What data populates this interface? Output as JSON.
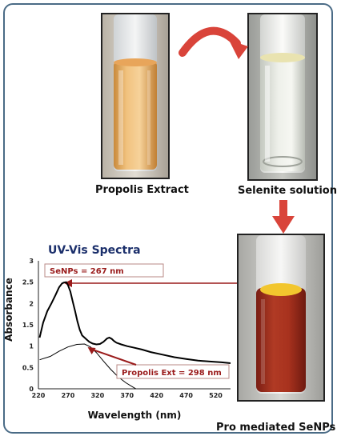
{
  "captions": {
    "propolis": "Propolis Extract",
    "selenite": "Selenite solution",
    "product": "Pro mediated SeNPs"
  },
  "chart_data": {
    "type": "line",
    "title": "UV-Vis Spectra",
    "xlabel": "Wavelength (nm)",
    "ylabel": "Absorbance",
    "xlim": [
      220,
      545
    ],
    "ylim": [
      0,
      3
    ],
    "xticks": [
      220,
      270,
      320,
      370,
      420,
      470,
      520
    ],
    "yticks": [
      0,
      0.5,
      1,
      1.5,
      2,
      2.5,
      3
    ],
    "series": [
      {
        "color": "#000000",
        "x": [
          222,
          228,
          235,
          242,
          249,
          255,
          260,
          263,
          267,
          270,
          274,
          278,
          282,
          286,
          290,
          294,
          298,
          302,
          306,
          312,
          318,
          324,
          330,
          336,
          340,
          344,
          348,
          352,
          360,
          370,
          380,
          395,
          410,
          430,
          450,
          470,
          490,
          510,
          530,
          545
        ],
        "y": [
          1.2,
          1.55,
          1.82,
          2.0,
          2.2,
          2.38,
          2.47,
          2.49,
          2.5,
          2.43,
          2.28,
          2.05,
          1.82,
          1.58,
          1.38,
          1.25,
          1.2,
          1.15,
          1.1,
          1.06,
          1.04,
          1.05,
          1.1,
          1.18,
          1.2,
          1.17,
          1.12,
          1.08,
          1.04,
          1.0,
          0.97,
          0.92,
          0.86,
          0.8,
          0.74,
          0.7,
          0.66,
          0.64,
          0.62,
          0.6
        ]
      },
      {
        "color": "#000000",
        "x": [
          222,
          240,
          255,
          270,
          285,
          298,
          308,
          318,
          330,
          342,
          355,
          368,
          380,
          385
        ],
        "y": [
          0.68,
          0.76,
          0.88,
          0.98,
          1.04,
          1.05,
          0.98,
          0.85,
          0.65,
          0.46,
          0.28,
          0.14,
          0.04,
          0.0
        ]
      }
    ],
    "annotations": [
      {
        "text": "SeNPs = 267 nm",
        "x": 267,
        "y": 2.5
      },
      {
        "text": "Propolis Ext = 298 nm",
        "x": 298,
        "y": 1.05
      }
    ]
  },
  "colors": {
    "accent_red": "#d9443a",
    "annotation_red": "#9a1b1b",
    "title_blue": "#1b2f6b",
    "frame_blue": "#4a6b86"
  }
}
